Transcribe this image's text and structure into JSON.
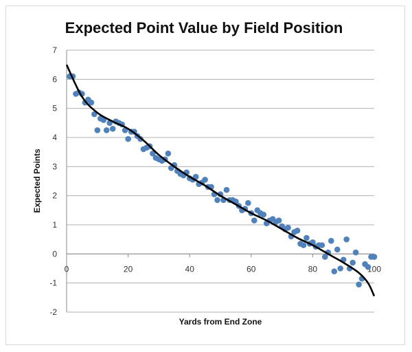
{
  "chart_data": {
    "type": "scatter",
    "title": "Expected Point Value by Field Position",
    "xlabel": "Yards from End Zone",
    "ylabel": "Expected Points",
    "xlim": [
      0,
      100
    ],
    "ylim": [
      -2,
      7
    ],
    "xticks": [
      0,
      20,
      40,
      60,
      80,
      100
    ],
    "yticks": [
      -2,
      -1,
      0,
      1,
      2,
      3,
      4,
      5,
      6,
      7
    ],
    "grid": true,
    "legend": "none",
    "colors": {
      "points": "#4f81bd",
      "trend": "#000000",
      "grid": "#b0b0b0"
    },
    "series": [
      {
        "name": "Expected Points",
        "x": [
          1,
          2,
          3,
          4,
          5,
          6,
          7,
          8,
          9,
          10,
          11,
          12,
          13,
          14,
          15,
          16,
          17,
          18,
          19,
          20,
          21,
          22,
          23,
          24,
          25,
          26,
          27,
          28,
          29,
          30,
          31,
          32,
          33,
          34,
          35,
          36,
          37,
          38,
          39,
          40,
          41,
          42,
          43,
          44,
          45,
          46,
          47,
          48,
          49,
          50,
          51,
          52,
          53,
          54,
          55,
          56,
          57,
          58,
          59,
          60,
          61,
          62,
          63,
          64,
          65,
          66,
          67,
          68,
          69,
          70,
          71,
          72,
          73,
          74,
          75,
          76,
          77,
          78,
          79,
          80,
          81,
          82,
          83,
          84,
          85,
          86,
          87,
          88,
          89,
          90,
          91,
          92,
          93,
          94,
          95,
          96,
          97,
          98,
          99,
          100
        ],
        "y": [
          6.1,
          6.1,
          5.5,
          5.55,
          5.5,
          5.2,
          5.3,
          5.2,
          4.8,
          4.25,
          4.65,
          4.6,
          4.25,
          4.5,
          4.3,
          4.55,
          4.5,
          4.45,
          4.25,
          3.95,
          4.2,
          4.2,
          4.05,
          3.95,
          3.6,
          3.65,
          3.7,
          3.45,
          3.3,
          3.25,
          3.2,
          3.25,
          3.45,
          2.95,
          3.05,
          2.85,
          2.75,
          2.7,
          2.8,
          2.6,
          2.55,
          2.65,
          2.4,
          2.45,
          2.55,
          2.3,
          2.3,
          2.05,
          1.85,
          2.05,
          1.85,
          2.2,
          1.85,
          1.85,
          1.8,
          1.65,
          1.5,
          1.55,
          1.75,
          1.4,
          1.15,
          1.5,
          1.4,
          1.35,
          1.05,
          1.15,
          1.2,
          1.1,
          1.15,
          0.95,
          0.85,
          0.9,
          0.6,
          0.75,
          0.8,
          0.35,
          0.3,
          0.55,
          0.35,
          0.4,
          0.25,
          0.3,
          0.3,
          -0.1,
          0.05,
          0.45,
          -0.6,
          0.15,
          -0.5,
          -0.2,
          0.5,
          -0.5,
          -0.3,
          0.05,
          -1.05,
          -0.85,
          -0.35,
          -0.45,
          -0.1,
          -0.1
        ]
      },
      {
        "name": "Trend",
        "type": "line",
        "x": [
          0,
          5,
          10,
          15,
          20,
          25,
          30,
          35,
          40,
          45,
          50,
          55,
          60,
          65,
          70,
          75,
          80,
          85,
          90,
          95,
          98,
          100
        ],
        "y": [
          6.5,
          5.4,
          4.85,
          4.55,
          4.3,
          3.9,
          3.4,
          3.0,
          2.65,
          2.35,
          2.0,
          1.7,
          1.4,
          1.15,
          0.85,
          0.55,
          0.3,
          0.0,
          -0.3,
          -0.65,
          -1.0,
          -1.45
        ]
      }
    ]
  }
}
